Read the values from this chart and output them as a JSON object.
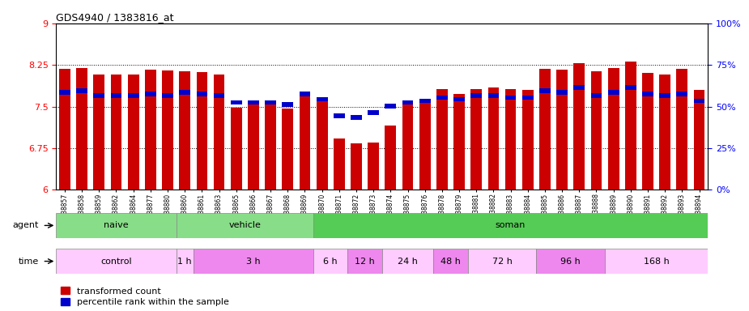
{
  "title": "GDS4940 / 1383816_at",
  "samples": [
    "GSM338857",
    "GSM338858",
    "GSM338859",
    "GSM338862",
    "GSM338864",
    "GSM338877",
    "GSM338880",
    "GSM338860",
    "GSM338861",
    "GSM338863",
    "GSM338865",
    "GSM338866",
    "GSM338867",
    "GSM338868",
    "GSM338869",
    "GSM338870",
    "GSM338871",
    "GSM338872",
    "GSM338873",
    "GSM338874",
    "GSM338875",
    "GSM338876",
    "GSM338878",
    "GSM338879",
    "GSM338881",
    "GSM338882",
    "GSM338883",
    "GSM338884",
    "GSM338885",
    "GSM338886",
    "GSM338887",
    "GSM338888",
    "GSM338889",
    "GSM338890",
    "GSM338891",
    "GSM338892",
    "GSM338893",
    "GSM338894"
  ],
  "red_values": [
    8.18,
    8.2,
    8.08,
    8.08,
    8.08,
    8.17,
    8.15,
    8.14,
    8.12,
    8.08,
    7.48,
    7.56,
    7.55,
    7.47,
    7.77,
    7.66,
    6.92,
    6.84,
    6.85,
    7.15,
    7.55,
    7.57,
    7.82,
    7.72,
    7.82,
    7.84,
    7.82,
    7.8,
    8.18,
    8.17,
    8.28,
    8.14,
    8.19,
    8.31,
    8.11,
    8.08,
    8.18,
    7.8
  ],
  "blue_percentiles": [
    57,
    58,
    55,
    55,
    55,
    56,
    55,
    57,
    56,
    55,
    51,
    51,
    51,
    50,
    56,
    53,
    43,
    42,
    45,
    49,
    51,
    52,
    54,
    53,
    55,
    55,
    54,
    54,
    58,
    57,
    60,
    55,
    57,
    60,
    56,
    55,
    56,
    52
  ],
  "ymin": 6.0,
  "ymax": 9.0,
  "y_ticks_left": [
    6,
    6.75,
    7.5,
    8.25,
    9
  ],
  "y_ticks_right_pct": [
    0,
    25,
    50,
    75,
    100
  ],
  "bar_color": "#cc0000",
  "blue_color": "#0000cc",
  "agent_segments": [
    {
      "label": "naive",
      "start": 0,
      "end": 7,
      "color": "#88dd88"
    },
    {
      "label": "vehicle",
      "start": 7,
      "end": 15,
      "color": "#88dd88"
    },
    {
      "label": "soman",
      "start": 15,
      "end": 38,
      "color": "#55cc55"
    }
  ],
  "time_segments": [
    {
      "label": "control",
      "start": 0,
      "end": 7,
      "color": "#ffccff"
    },
    {
      "label": "1 h",
      "start": 7,
      "end": 8,
      "color": "#ffccff"
    },
    {
      "label": "3 h",
      "start": 8,
      "end": 15,
      "color": "#ee88ee"
    },
    {
      "label": "6 h",
      "start": 15,
      "end": 17,
      "color": "#ffccff"
    },
    {
      "label": "12 h",
      "start": 17,
      "end": 19,
      "color": "#ee88ee"
    },
    {
      "label": "24 h",
      "start": 19,
      "end": 22,
      "color": "#ffccff"
    },
    {
      "label": "48 h",
      "start": 22,
      "end": 24,
      "color": "#ee88ee"
    },
    {
      "label": "72 h",
      "start": 24,
      "end": 28,
      "color": "#ffccff"
    },
    {
      "label": "96 h",
      "start": 28,
      "end": 32,
      "color": "#ee88ee"
    },
    {
      "label": "168 h",
      "start": 32,
      "end": 38,
      "color": "#ffccff"
    }
  ],
  "n": 38,
  "legend_red": "transformed count",
  "legend_blue": "percentile rank within the sample"
}
